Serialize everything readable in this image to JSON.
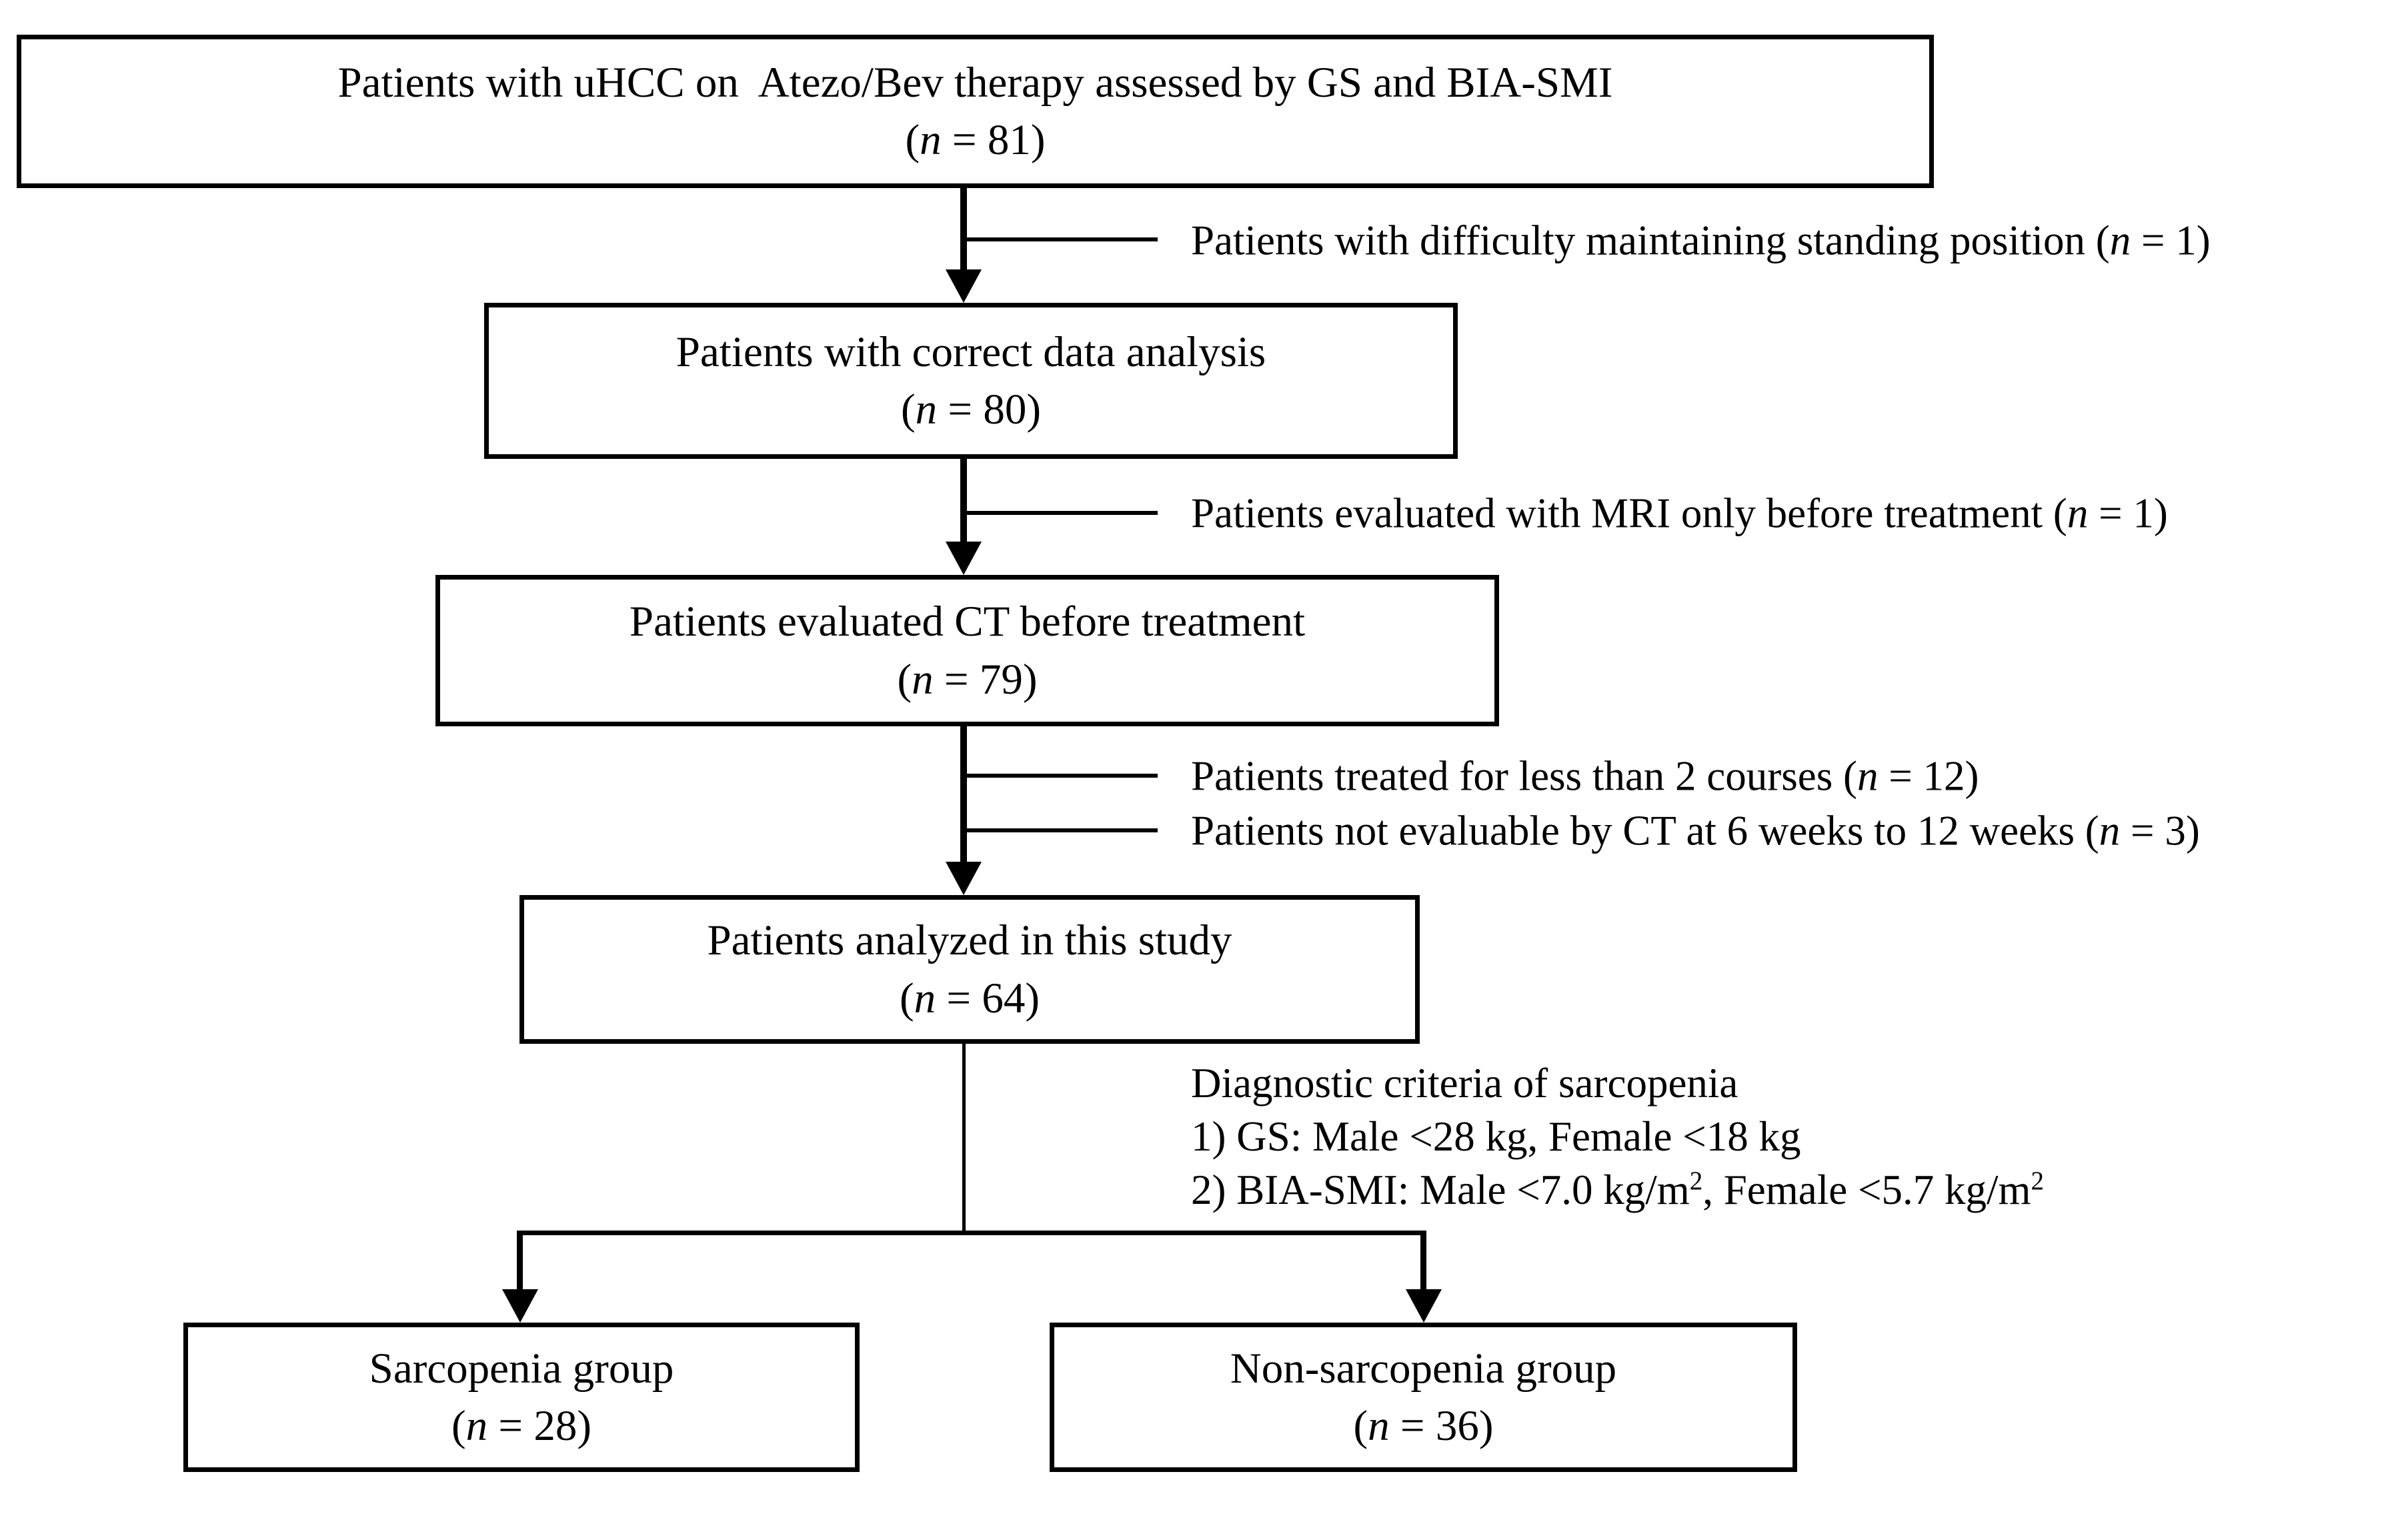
{
  "figure": {
    "type": "patient-flow-diagram",
    "colors": {
      "line": "#000000",
      "text": "#000000",
      "background": "#ffffff"
    },
    "boxes": [
      {
        "id": "uhcc",
        "label": "Patients with uHCC on  Atezo/Bev therapy assessed by GS and BIA-SMI",
        "count": "(n = 81)"
      },
      {
        "id": "correct-data",
        "label": "Patients with correct data analysis",
        "count": "(n = 80)"
      },
      {
        "id": "ct-before",
        "label": "Patients evaluated CT before treatment",
        "count": "(n = 79)"
      },
      {
        "id": "analyzed",
        "label": "Patients analyzed in this study",
        "count": "(n = 64)"
      },
      {
        "id": "sarcopenia",
        "label": "Sarcopenia group",
        "count": "(n = 28)"
      },
      {
        "id": "non-sarcopenia",
        "label": "Non-sarcopenia group",
        "count": "(n = 36)"
      }
    ],
    "exclusions": [
      {
        "text": "Patients with difficulty maintaining standing position (n = 1)"
      },
      {
        "text": "Patients evaluated with MRI only before treatment (n = 1)"
      },
      {
        "text": "Patients treated for less than 2 courses (n = 12)"
      },
      {
        "text": "Patients not evaluable by CT at 6 weeks to 12 weeks (n = 3)"
      }
    ],
    "criteria": {
      "title": "Diagnostic criteria of sarcopenia",
      "item1": "1) GS: Male <28 kg, Female <18 kg",
      "item2": "2) BIA-SMI: Male <7.0 kg/m², Female <5.7 kg/m²"
    }
  }
}
